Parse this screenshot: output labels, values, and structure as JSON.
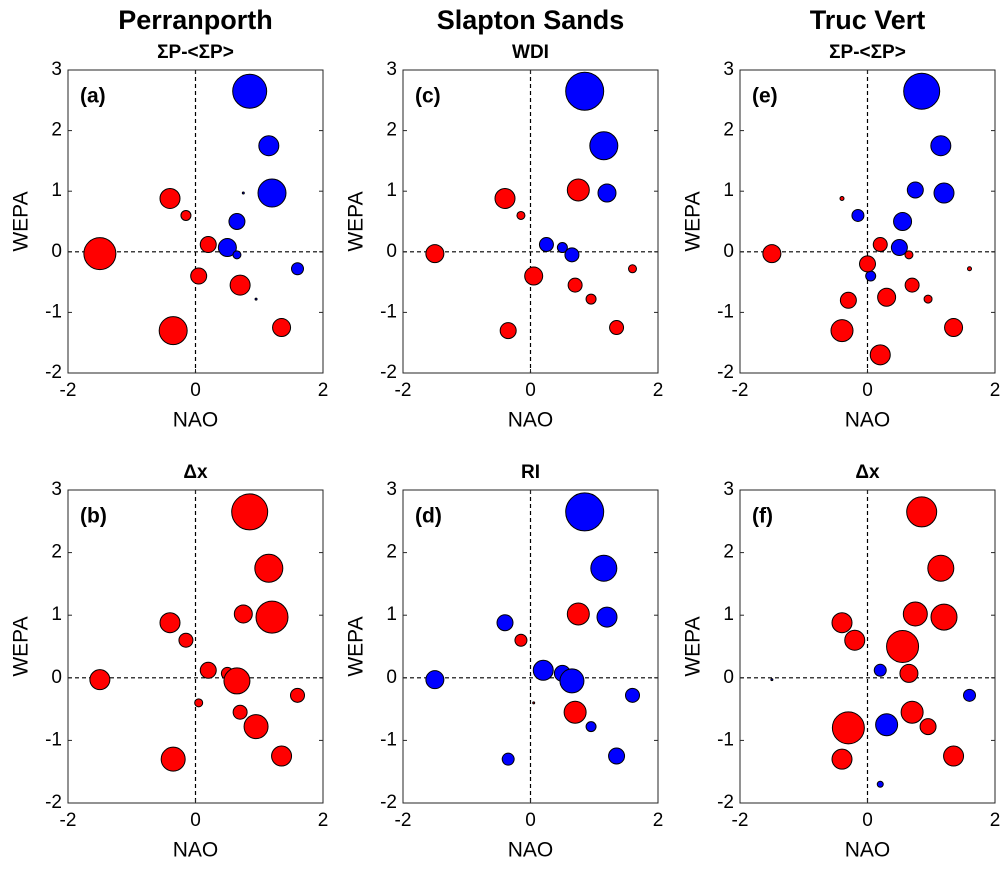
{
  "chart_data": [
    {
      "type": "scatter",
      "title": "Perranporth",
      "subtitle": "ΣP-<ΣP>",
      "annotation": "(a)",
      "xlabel": "NAO",
      "ylabel": "WEPA",
      "xlim": [
        -2,
        2
      ],
      "ylim": [
        -2,
        3
      ],
      "xticks": [
        -2,
        0,
        2
      ],
      "yticks": [
        -2,
        -1,
        0,
        1,
        2,
        3
      ],
      "series": [
        {
          "color": "#0000ff",
          "x": [
            0.85,
            1.15,
            1.2,
            0.65,
            0.5,
            0.65,
            1.6,
            0.75,
            0.95
          ],
          "values": [
            2.65,
            1.75,
            0.97,
            0.5,
            0.07,
            -0.05,
            -0.28,
            0.97,
            -0.78
          ],
          "sizes": [
            17,
            10,
            14,
            8,
            9,
            4,
            6,
            1,
            1
          ]
        },
        {
          "color": "#ff0000",
          "x": [
            -0.4,
            -0.15,
            -1.5,
            0.2,
            0.05,
            0.7,
            -0.35,
            1.35
          ],
          "values": [
            0.88,
            0.6,
            -0.03,
            0.12,
            -0.4,
            -0.55,
            -1.3,
            -1.25
          ],
          "sizes": [
            10,
            5,
            16,
            8,
            8,
            10,
            14,
            9
          ]
        }
      ]
    },
    {
      "type": "scatter",
      "subtitle": "Δx",
      "annotation": "(b)",
      "xlabel": "NAO",
      "ylabel": "WEPA",
      "xlim": [
        -2,
        2
      ],
      "ylim": [
        -2,
        3
      ],
      "xticks": [
        -2,
        0,
        2
      ],
      "yticks": [
        -2,
        -1,
        0,
        1,
        2,
        3
      ],
      "series": [
        {
          "color": "#ff0000",
          "x": [
            0.85,
            1.15,
            1.2,
            0.75,
            -0.4,
            -0.15,
            -1.5,
            0.2,
            0.5,
            0.65,
            1.6,
            0.05,
            0.7,
            0.95,
            -0.35,
            1.35
          ],
          "values": [
            2.65,
            1.75,
            0.97,
            1.02,
            0.88,
            0.6,
            -0.03,
            0.12,
            0.07,
            -0.05,
            -0.28,
            -0.4,
            -0.55,
            -0.78,
            -1.3,
            -1.25
          ],
          "sizes": [
            18,
            14,
            16,
            9,
            10,
            7,
            10,
            8,
            6,
            13,
            7,
            4,
            7,
            12,
            12,
            10
          ]
        }
      ]
    },
    {
      "type": "scatter",
      "title": "Slapton Sands",
      "subtitle": "WDI",
      "annotation": "(c)",
      "xlabel": "NAO",
      "ylabel": "WEPA",
      "xlim": [
        -2,
        2
      ],
      "ylim": [
        -2,
        3
      ],
      "xticks": [
        -2,
        0,
        2
      ],
      "yticks": [
        -2,
        -1,
        0,
        1,
        2,
        3
      ],
      "series": [
        {
          "color": "#0000ff",
          "x": [
            0.85,
            1.15,
            1.2,
            0.25,
            0.5,
            0.65
          ],
          "values": [
            2.65,
            1.75,
            0.97,
            0.12,
            0.07,
            -0.05
          ],
          "sizes": [
            19,
            14,
            9,
            7,
            5,
            7
          ]
        },
        {
          "color": "#ff0000",
          "x": [
            0.75,
            -0.4,
            -0.15,
            -1.5,
            0.05,
            0.7,
            0.95,
            1.6,
            -0.35,
            1.35
          ],
          "values": [
            1.02,
            0.88,
            0.6,
            -0.03,
            -0.4,
            -0.55,
            -0.78,
            -0.28,
            -1.3,
            -1.25
          ],
          "sizes": [
            11,
            10,
            4,
            9,
            9,
            7,
            5,
            4,
            8,
            7
          ]
        }
      ]
    },
    {
      "type": "scatter",
      "subtitle": "RI",
      "annotation": "(d)",
      "xlabel": "NAO",
      "ylabel": "WEPA",
      "xlim": [
        -2,
        2
      ],
      "ylim": [
        -2,
        3
      ],
      "xticks": [
        -2,
        0,
        2
      ],
      "yticks": [
        -2,
        -1,
        0,
        1,
        2,
        3
      ],
      "series": [
        {
          "color": "#0000ff",
          "x": [
            0.85,
            1.15,
            1.2,
            -0.4,
            -1.5,
            0.2,
            0.5,
            0.65,
            1.6,
            0.95,
            -0.35,
            1.35
          ],
          "values": [
            2.65,
            1.75,
            0.97,
            0.88,
            -0.03,
            0.12,
            0.07,
            -0.05,
            -0.28,
            -0.78,
            -1.3,
            -1.25
          ],
          "sizes": [
            19,
            13,
            10,
            8,
            9,
            10,
            8,
            12,
            7,
            5,
            6,
            8
          ]
        },
        {
          "color": "#ff0000",
          "x": [
            0.75,
            -0.15,
            0.7,
            0.05
          ],
          "values": [
            1.02,
            0.6,
            -0.55,
            -0.4
          ],
          "sizes": [
            11,
            6,
            11,
            1
          ]
        }
      ]
    },
    {
      "type": "scatter",
      "title": "Truc Vert",
      "subtitle": "ΣP-<ΣP>",
      "annotation": "(e)",
      "xlabel": "NAO",
      "ylabel": "WEPA",
      "xlim": [
        -2,
        2
      ],
      "ylim": [
        -2,
        3
      ],
      "xticks": [
        -2,
        0,
        2
      ],
      "yticks": [
        -2,
        -1,
        0,
        1,
        2,
        3
      ],
      "series": [
        {
          "color": "#0000ff",
          "x": [
            0.85,
            1.15,
            1.2,
            0.75,
            -0.15,
            0.55,
            0.5,
            0.05
          ],
          "values": [
            2.65,
            1.75,
            0.97,
            1.02,
            0.6,
            0.5,
            0.07,
            -0.4
          ],
          "sizes": [
            18,
            10,
            10,
            8,
            6,
            9,
            8,
            5
          ]
        },
        {
          "color": "#ff0000",
          "x": [
            -0.4,
            -1.5,
            0.2,
            0.0,
            0.65,
            1.6,
            -0.3,
            0.3,
            0.7,
            0.95,
            -0.4,
            1.35,
            0.2
          ],
          "values": [
            0.88,
            -0.03,
            0.12,
            -0.2,
            -0.05,
            -0.28,
            -0.8,
            -0.75,
            -0.55,
            -0.78,
            -1.3,
            -1.25,
            -1.7
          ],
          "sizes": [
            2,
            9,
            7,
            8,
            4,
            2,
            8,
            9,
            7,
            4,
            11,
            9,
            10
          ]
        }
      ]
    },
    {
      "type": "scatter",
      "subtitle": "Δx",
      "annotation": "(f)",
      "xlabel": "NAO",
      "ylabel": "WEPA",
      "xlim": [
        -2,
        2
      ],
      "ylim": [
        -2,
        3
      ],
      "xticks": [
        -2,
        0,
        2
      ],
      "yticks": [
        -2,
        -1,
        0,
        1,
        2,
        3
      ],
      "series": [
        {
          "color": "#ff0000",
          "x": [
            0.85,
            1.15,
            1.2,
            0.75,
            -0.4,
            -0.2,
            0.55,
            0.65,
            0.95,
            0.7,
            -0.3,
            -0.4,
            1.35
          ],
          "values": [
            2.65,
            1.75,
            0.97,
            1.02,
            0.88,
            0.6,
            0.5,
            0.07,
            -0.78,
            -0.55,
            -0.8,
            -1.3,
            -1.25
          ],
          "sizes": [
            15,
            13,
            13,
            12,
            10,
            10,
            16,
            9,
            8,
            11,
            16,
            10,
            10
          ]
        },
        {
          "color": "#0000ff",
          "x": [
            0.2,
            0.3,
            1.6,
            0.2,
            -1.5
          ],
          "values": [
            0.12,
            -0.75,
            -0.28,
            -1.7,
            -0.03
          ],
          "sizes": [
            6,
            11,
            6,
            3,
            1
          ]
        }
      ]
    }
  ]
}
